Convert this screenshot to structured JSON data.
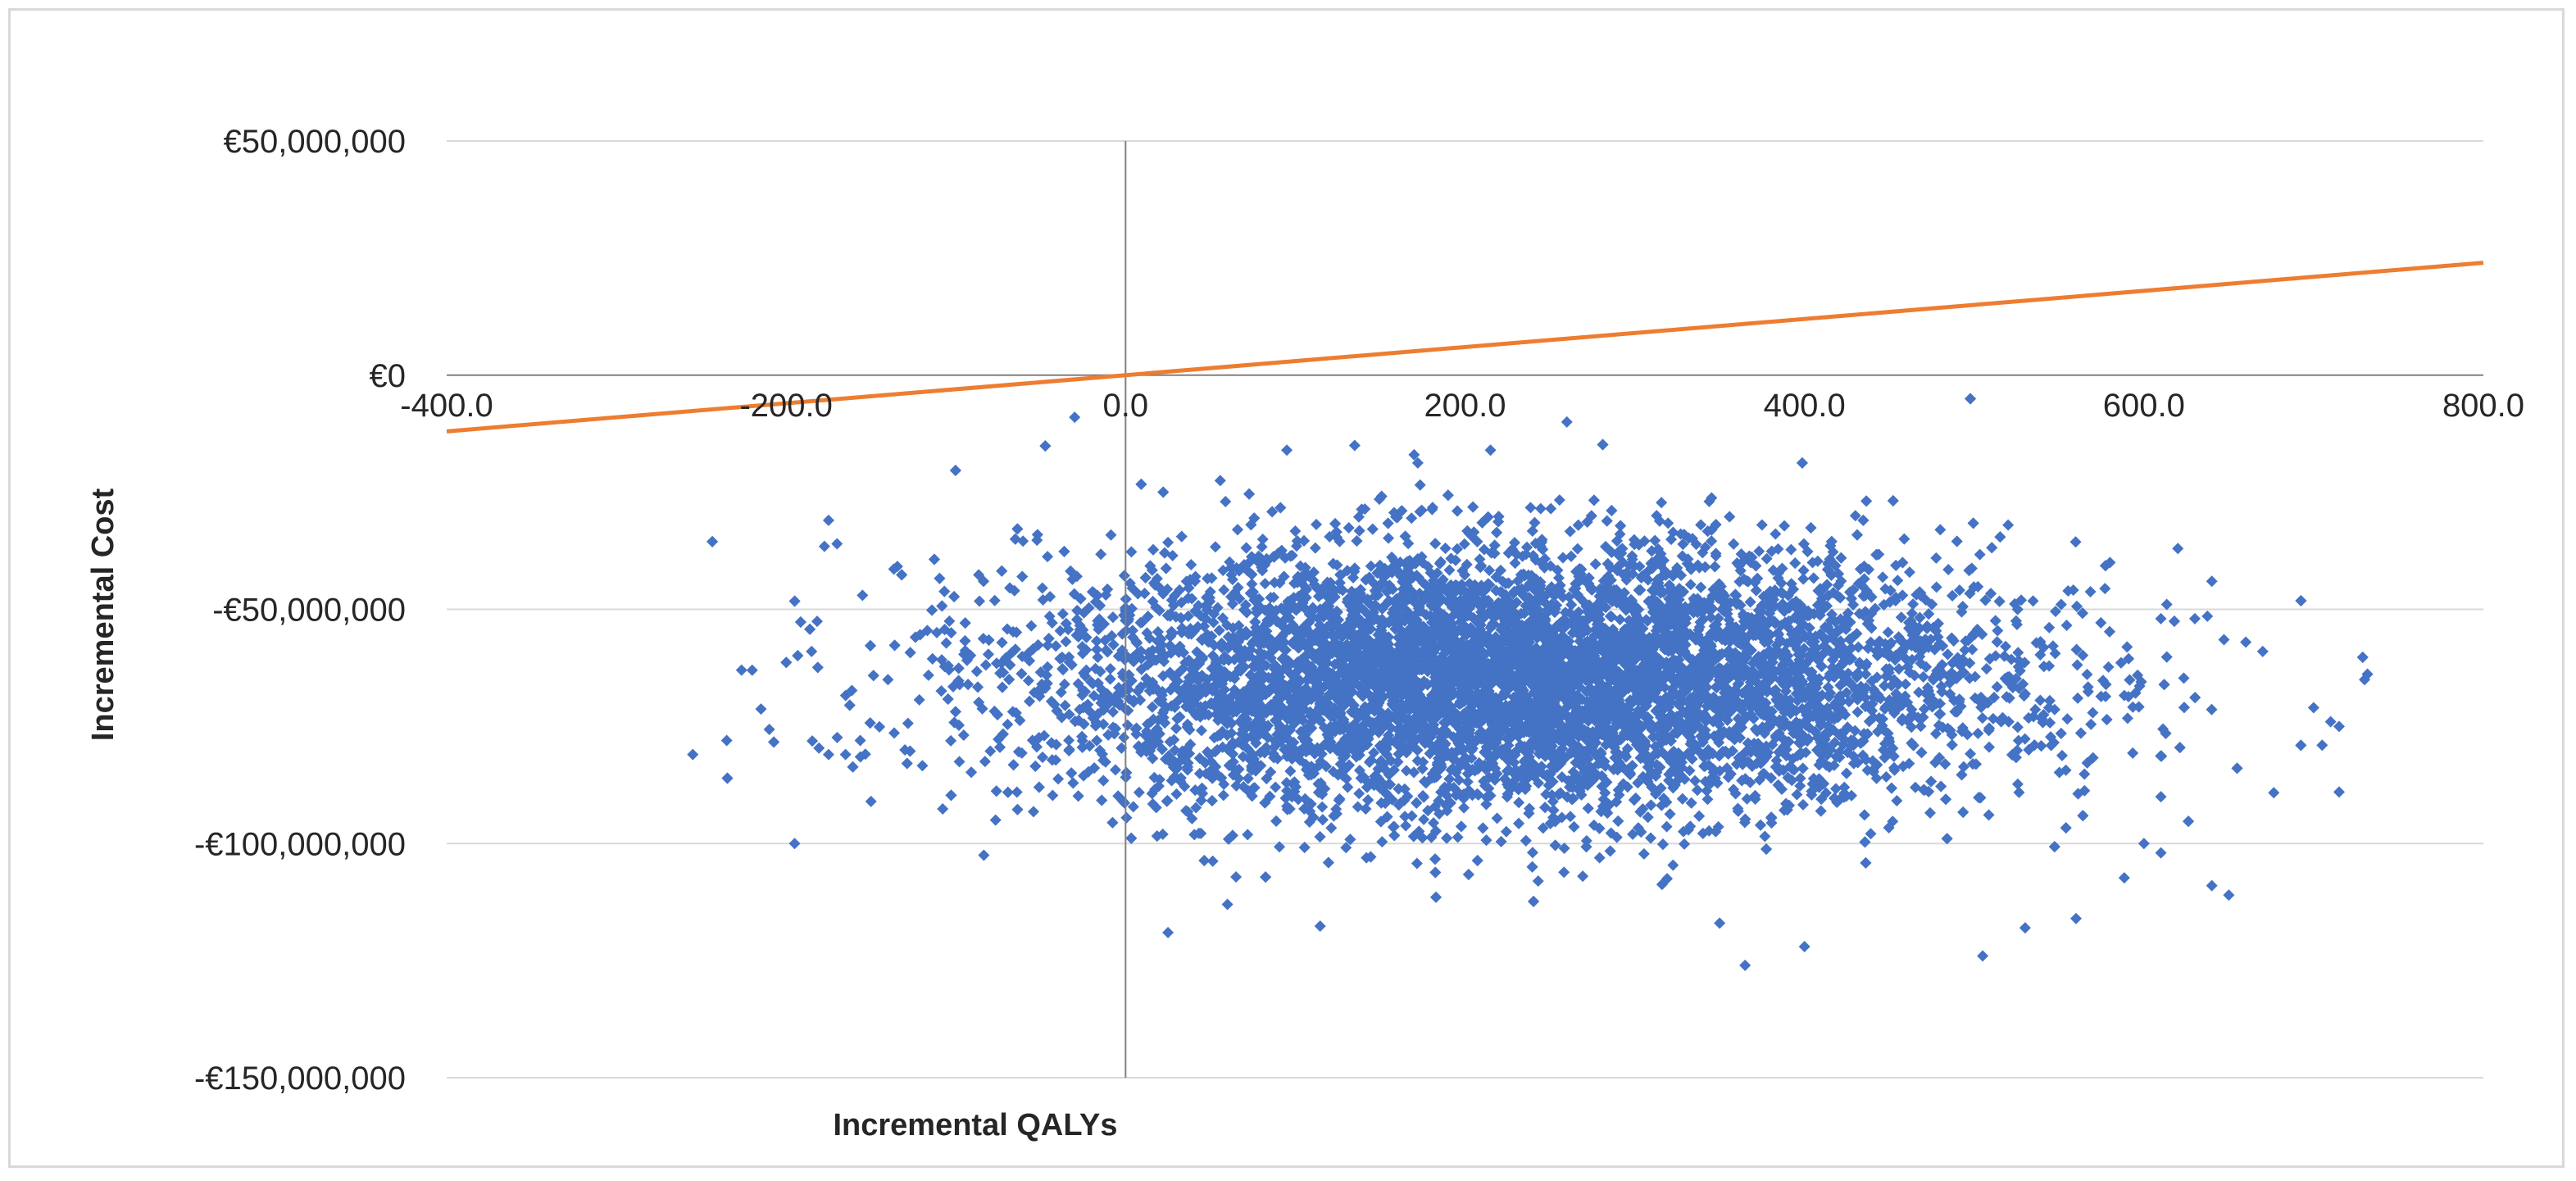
{
  "chart_data": {
    "type": "scatter",
    "title": "",
    "xlabel": "Incremental QALYs",
    "ylabel": "Incremental Cost",
    "xlim": [
      -400,
      800
    ],
    "ylim": [
      -150000000,
      50000000
    ],
    "x_ticks": [
      -400,
      -200,
      0,
      200,
      400,
      600,
      800
    ],
    "x_tick_labels": [
      "-400.0",
      "-200.0",
      "0.0",
      "200.0",
      "400.0",
      "600.0",
      "800.0"
    ],
    "y_ticks": [
      50000000,
      0,
      -50000000,
      -100000000,
      -150000000
    ],
    "y_tick_labels": [
      "€50,000,000",
      "€0",
      "-€50,000,000",
      "-€100,000,000",
      "-€150,000,000"
    ],
    "grid": "horizontal",
    "series": [
      {
        "type": "scatter",
        "color": "#4472c4",
        "marker": "diamond",
        "distribution": {
          "count": 10000,
          "x_mean": 230,
          "x_sd": 140,
          "y_mean": -65000000,
          "y_sd": 14000000
        },
        "points": [
          {
            "x": -30,
            "y": -9000000
          },
          {
            "x": -255,
            "y": -81000000
          },
          {
            "x": -235,
            "y": -78000000
          },
          {
            "x": -220,
            "y": -63000000
          },
          {
            "x": -195,
            "y": -100000000
          },
          {
            "x": -185,
            "y": -59000000
          },
          {
            "x": -175,
            "y": -81000000
          },
          {
            "x": -165,
            "y": -81000000
          },
          {
            "x": -175,
            "y": -31000000
          },
          {
            "x": -170,
            "y": -36000000
          },
          {
            "x": -155,
            "y": -47000000
          },
          {
            "x": -150,
            "y": -91000000
          },
          {
            "x": -140,
            "y": -65000000
          },
          {
            "x": -130,
            "y": -80000000
          },
          {
            "x": 25,
            "y": -119000000
          },
          {
            "x": 60,
            "y": -113000000
          },
          {
            "x": 260,
            "y": -10000000
          },
          {
            "x": 350,
            "y": -117000000
          },
          {
            "x": 365,
            "y": -126000000
          },
          {
            "x": 400,
            "y": -122000000
          },
          {
            "x": 505,
            "y": -124000000
          },
          {
            "x": 530,
            "y": -118000000
          },
          {
            "x": 560,
            "y": -116000000
          },
          {
            "x": 640,
            "y": -109000000
          },
          {
            "x": 650,
            "y": -111000000
          },
          {
            "x": 660,
            "y": -57000000
          },
          {
            "x": 670,
            "y": -59000000
          },
          {
            "x": 700,
            "y": -71000000
          },
          {
            "x": 705,
            "y": -79000000
          },
          {
            "x": 710,
            "y": -74000000
          },
          {
            "x": 715,
            "y": -75000000
          },
          {
            "x": 715,
            "y": -89000000
          },
          {
            "x": 730,
            "y": -65000000
          },
          {
            "x": 640,
            "y": -44000000
          },
          {
            "x": 620,
            "y": -37000000
          },
          {
            "x": 580,
            "y": -40000000
          },
          {
            "x": 610,
            "y": -52000000
          },
          {
            "x": 630,
            "y": -52000000
          },
          {
            "x": 600,
            "y": -100000000
          },
          {
            "x": 610,
            "y": -102000000
          },
          {
            "x": 610,
            "y": -90000000
          },
          {
            "x": 520,
            "y": -32000000
          },
          {
            "x": 480,
            "y": -33000000
          },
          {
            "x": 430,
            "y": -30000000
          },
          {
            "x": 170,
            "y": -17000000
          },
          {
            "x": 135,
            "y": -15000000
          },
          {
            "x": 215,
            "y": -16000000
          },
          {
            "x": 95,
            "y": -16000000
          }
        ]
      },
      {
        "type": "line",
        "color": "#ed7d31",
        "x": [
          -400,
          800
        ],
        "y": [
          -12000000,
          24000000
        ]
      }
    ]
  }
}
